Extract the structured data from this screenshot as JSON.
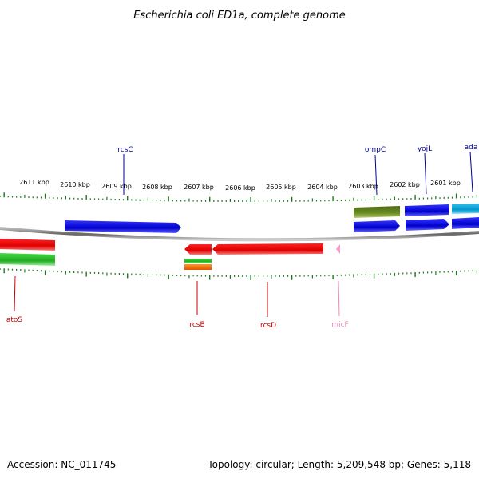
{
  "title": "Escherichia coli ED1a, complete genome",
  "footer": {
    "accession": "Accession: NC_011745",
    "summary": "Topology: circular; Length: 5,209,548 bp; Genes: 5,118"
  },
  "scale_labels": [
    "2611 kbp",
    "2610 kbp",
    "2609 kbp",
    "2608 kbp",
    "2607 kbp",
    "2606 kbp",
    "2605 kbp",
    "2604 kbp",
    "2603 kbp",
    "2602 kbp",
    "2601 kbp"
  ],
  "gene_labels": {
    "rcsC": "rcsC",
    "ompC": "ompC",
    "yojL": "yojL",
    "ada": "ada",
    "atoS": "atoS",
    "rcsB": "rcsB",
    "rcsD": "rcsD",
    "micF": "micF"
  },
  "colors": {
    "tick": "#1a7a1a",
    "backbone": "#888888",
    "blue_gene": "#0000dd",
    "red_gene": "#ee0000",
    "green_gene": "#22bb22",
    "olive_gene": "#6b8e23",
    "cyan_gene": "#11aadd",
    "orange_gene": "#ee7700",
    "pink_gene": "#ff99cc",
    "label_blue": "#000099",
    "label_red": "#cc0000",
    "label_pink": "#ee88bb"
  }
}
